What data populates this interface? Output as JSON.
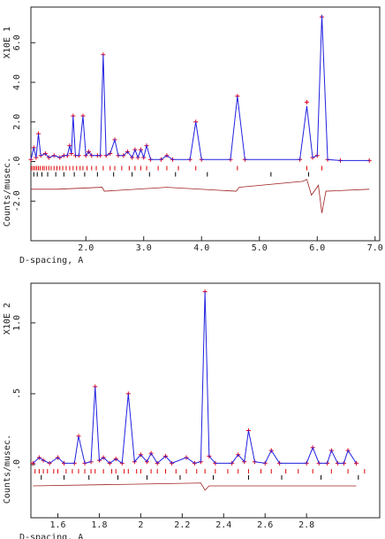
{
  "chart_data": [
    {
      "type": "line",
      "ylabel": "Counts/musec.",
      "scale_label": "X10E 1",
      "xlabel": "D-spacing, A",
      "xlim": [
        1.05,
        7.08
      ],
      "ylim": [
        -4.0,
        7.8
      ],
      "xticks": [
        {
          "value": 2,
          "label": "2.0"
        },
        {
          "value": 3,
          "label": "3.0"
        },
        {
          "value": 4,
          "label": "4.0"
        },
        {
          "value": 5,
          "label": "5.0"
        },
        {
          "value": 6,
          "label": "6.0"
        },
        {
          "value": 7,
          "label": "7.0"
        }
      ],
      "yticks": [
        {
          "value": -2,
          "label": "-2.0"
        },
        {
          "value": 0,
          "label": ".0"
        },
        {
          "value": 2,
          "label": "2.0"
        },
        {
          "value": 4,
          "label": "4.0"
        },
        {
          "value": 6,
          "label": "6.0"
        }
      ],
      "x": [
        1.05,
        1.1,
        1.14,
        1.18,
        1.22,
        1.3,
        1.36,
        1.45,
        1.55,
        1.62,
        1.68,
        1.72,
        1.75,
        1.78,
        1.82,
        1.88,
        1.95,
        2.0,
        2.05,
        2.1,
        2.2,
        2.25,
        2.3,
        2.35,
        2.42,
        2.5,
        2.56,
        2.65,
        2.72,
        2.8,
        2.85,
        2.9,
        2.95,
        3.0,
        3.05,
        3.12,
        3.3,
        3.4,
        3.5,
        3.8,
        3.9,
        4.0,
        4.5,
        4.62,
        4.75,
        5.7,
        5.82,
        5.92,
        6.0,
        6.08,
        6.18,
        6.4,
        6.9
      ],
      "series": [
        {
          "color": "#e00020",
          "marker": true,
          "values": [
            0.1,
            0.7,
            0.2,
            1.4,
            0.3,
            0.4,
            0.2,
            0.3,
            0.2,
            0.3,
            0.3,
            0.8,
            0.4,
            2.3,
            0.3,
            0.3,
            2.3,
            0.3,
            0.5,
            0.3,
            0.3,
            0.3,
            5.4,
            0.3,
            0.4,
            1.1,
            0.3,
            0.3,
            0.5,
            0.2,
            0.6,
            0.2,
            0.6,
            0.2,
            0.8,
            0.1,
            0.1,
            0.3,
            0.1,
            0.1,
            2.0,
            0.1,
            0.1,
            3.3,
            0.1,
            0.1,
            3.0,
            0.2,
            0.3,
            7.3,
            0.1,
            0.05,
            0.05
          ]
        },
        {
          "color": "#2020e0",
          "marker": false,
          "values": [
            0.1,
            0.7,
            0.2,
            1.4,
            0.3,
            0.4,
            0.2,
            0.3,
            0.2,
            0.3,
            0.3,
            0.8,
            0.4,
            2.3,
            0.3,
            0.3,
            2.3,
            0.3,
            0.5,
            0.3,
            0.3,
            0.3,
            5.4,
            0.3,
            0.4,
            1.1,
            0.3,
            0.3,
            0.5,
            0.2,
            0.6,
            0.2,
            0.6,
            0.2,
            0.8,
            0.1,
            0.1,
            0.3,
            0.1,
            0.1,
            2.0,
            0.1,
            0.1,
            3.3,
            0.1,
            0.1,
            2.8,
            0.2,
            0.3,
            7.4,
            0.1,
            0.05,
            0.05
          ]
        }
      ],
      "difference": {
        "color": "#a02020",
        "x": [
          1.05,
          1.5,
          2.28,
          2.32,
          3.4,
          4.6,
          4.65,
          5.75,
          5.82,
          5.9,
          6.02,
          6.08,
          6.15,
          6.9
        ],
        "values": [
          -1.4,
          -1.4,
          -1.3,
          -1.5,
          -1.3,
          -1.5,
          -1.3,
          -1.0,
          -0.9,
          -1.7,
          -1.2,
          -2.6,
          -1.5,
          -1.4
        ]
      },
      "reflections": [
        {
          "color": "#e00000",
          "x": [
            1.06,
            1.09,
            1.12,
            1.15,
            1.18,
            1.21,
            1.25,
            1.28,
            1.32,
            1.36,
            1.4,
            1.45,
            1.5,
            1.55,
            1.6,
            1.66,
            1.72,
            1.78,
            1.84,
            1.9,
            1.95,
            2.02,
            2.1,
            2.18,
            2.3,
            2.42,
            2.5,
            2.62,
            2.75,
            2.85,
            2.95,
            3.05,
            3.25,
            3.4,
            3.6,
            3.9,
            4.62,
            5.82,
            6.08
          ]
        },
        {
          "color": "#000000",
          "x": [
            1.1,
            1.16,
            1.24,
            1.34,
            1.48,
            1.62,
            1.8,
            1.98,
            2.2,
            2.48,
            2.8,
            3.1,
            3.55,
            4.1,
            5.2,
            5.85
          ]
        }
      ]
    },
    {
      "type": "line",
      "ylabel": "Counts/musec.",
      "scale_label": "X10E 2",
      "xlabel": "D-spacing, A",
      "xlim": [
        1.47,
        3.153
      ],
      "ylim": [
        -0.375,
        1.28
      ],
      "xticks": [
        1.6,
        1.8,
        2.0,
        2.2,
        2.4,
        2.6,
        2.8
      ],
      "yticks": [
        {
          "value": 0,
          "label": ".0"
        },
        {
          "value": 0.5,
          "label": ".5"
        },
        {
          "value": 1,
          "label": "1.0"
        }
      ],
      "x": [
        1.48,
        1.51,
        1.53,
        1.56,
        1.6,
        1.63,
        1.68,
        1.7,
        1.73,
        1.76,
        1.78,
        1.8,
        1.82,
        1.85,
        1.88,
        1.91,
        1.94,
        1.97,
        2.0,
        2.03,
        2.05,
        2.08,
        2.12,
        2.15,
        2.22,
        2.26,
        2.29,
        2.31,
        2.33,
        2.36,
        2.44,
        2.47,
        2.5,
        2.52,
        2.55,
        2.6,
        2.63,
        2.67,
        2.8,
        2.83,
        2.86,
        2.9,
        2.92,
        2.95,
        2.98,
        3.0,
        3.04
      ],
      "series": [
        {
          "color": "#e00020",
          "marker": true,
          "values": [
            0.01,
            0.05,
            0.03,
            0.01,
            0.05,
            0.01,
            0.01,
            0.2,
            0.01,
            0.02,
            0.55,
            0.03,
            0.05,
            0.01,
            0.04,
            0.01,
            0.5,
            0.02,
            0.07,
            0.02,
            0.08,
            0.01,
            0.06,
            0.01,
            0.05,
            0.01,
            0.02,
            1.22,
            0.06,
            0.01,
            0.01,
            0.07,
            0.02,
            0.24,
            0.02,
            0.01,
            0.1,
            0.01,
            0.01,
            0.12,
            0.01,
            0.01,
            0.1,
            0.01,
            0.01,
            0.1,
            0.01
          ]
        },
        {
          "color": "#2020e0",
          "marker": false,
          "values": [
            0.01,
            0.05,
            0.03,
            0.01,
            0.05,
            0.01,
            0.01,
            0.2,
            0.01,
            0.02,
            0.55,
            0.03,
            0.05,
            0.01,
            0.04,
            0.01,
            0.5,
            0.02,
            0.07,
            0.02,
            0.08,
            0.01,
            0.06,
            0.01,
            0.05,
            0.01,
            0.02,
            1.22,
            0.06,
            0.01,
            0.01,
            0.07,
            0.02,
            0.24,
            0.02,
            0.01,
            0.1,
            0.01,
            0.01,
            0.12,
            0.01,
            0.01,
            0.1,
            0.01,
            0.01,
            0.1,
            0.01
          ]
        }
      ],
      "difference": {
        "color": "#a02020",
        "x": [
          1.48,
          2.29,
          2.31,
          2.33,
          2.6,
          3.04
        ],
        "values": [
          -0.15,
          -0.13,
          -0.18,
          -0.15,
          -0.15,
          -0.15
        ]
      },
      "reflections": [
        {
          "color": "#e00000",
          "x": [
            1.49,
            1.51,
            1.53,
            1.55,
            1.58,
            1.6,
            1.64,
            1.67,
            1.7,
            1.73,
            1.76,
            1.78,
            1.82,
            1.86,
            1.88,
            1.92,
            1.94,
            1.98,
            2.0,
            2.05,
            2.08,
            2.12,
            2.17,
            2.22,
            2.27,
            2.31,
            2.36,
            2.42,
            2.47,
            2.52,
            2.58,
            2.63,
            2.7,
            2.76,
            2.83,
            2.92,
            3.0,
            3.08
          ]
        },
        {
          "color": "#000000",
          "x": [
            1.52,
            1.63,
            1.75,
            1.89,
            2.03,
            2.19,
            2.35,
            2.52,
            2.68,
            2.87,
            3.05
          ]
        }
      ]
    }
  ]
}
